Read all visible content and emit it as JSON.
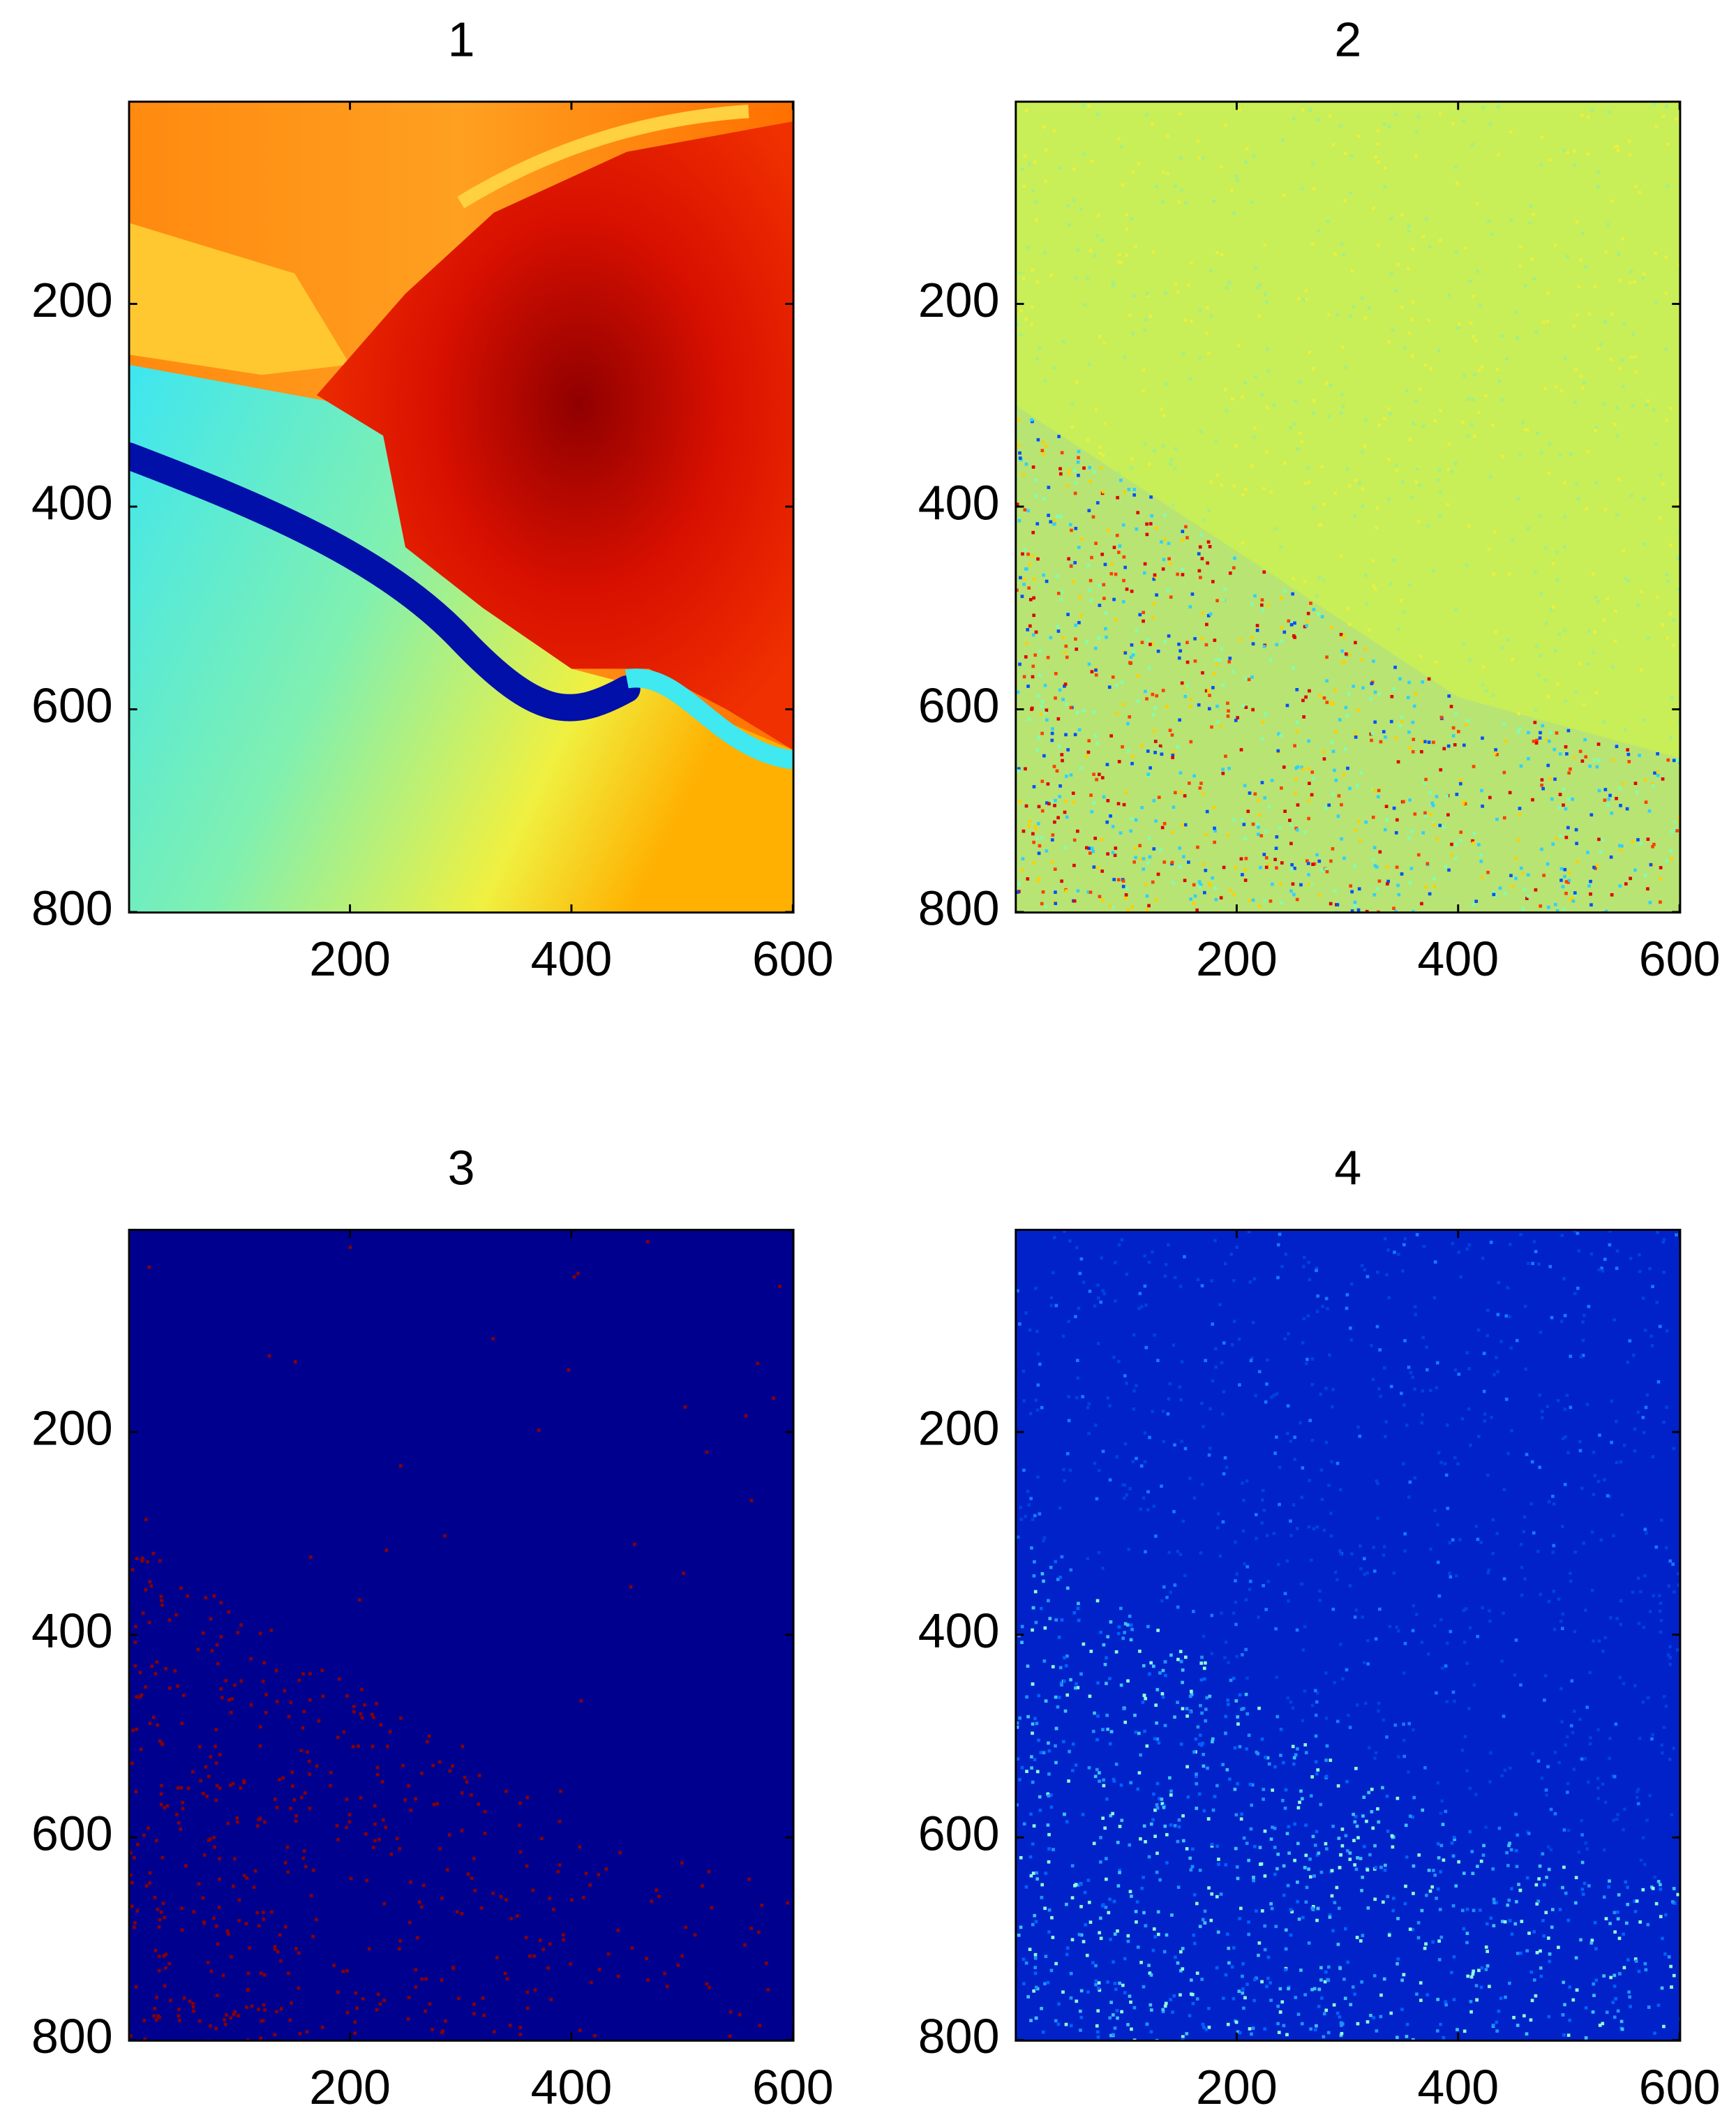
{
  "chart_data": [
    {
      "type": "image",
      "title": "1",
      "colormap": "jet",
      "xlim": [
        0.5,
        600.5
      ],
      "ylim": [
        0.5,
        800.5
      ],
      "y_reversed": true,
      "xticks": [
        200,
        400,
        600
      ],
      "yticks": [
        200,
        400,
        600,
        800
      ]
    },
    {
      "type": "image",
      "title": "2",
      "colormap": "jet",
      "xlim": [
        0.5,
        600.5
      ],
      "ylim": [
        0.5,
        800.5
      ],
      "y_reversed": true,
      "xticks": [
        200,
        400,
        600
      ],
      "yticks": [
        200,
        400,
        600,
        800
      ]
    },
    {
      "type": "image",
      "title": "3",
      "colormap": "jet",
      "xlim": [
        0.5,
        600.5
      ],
      "ylim": [
        0.5,
        800.5
      ],
      "y_reversed": true,
      "xticks": [
        200,
        400,
        600
      ],
      "yticks": [
        200,
        400,
        600,
        800
      ]
    },
    {
      "type": "image",
      "title": "4",
      "colormap": "jet",
      "xlim": [
        0.5,
        600.5
      ],
      "ylim": [
        0.5,
        800.5
      ],
      "y_reversed": true,
      "xticks": [
        200,
        400,
        600
      ],
      "yticks": [
        200,
        400,
        600,
        800
      ]
    }
  ]
}
